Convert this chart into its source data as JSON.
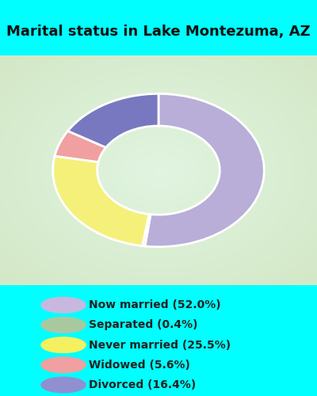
{
  "title": "Marital status in Lake Montezuma, AZ",
  "categories": [
    "Now married",
    "Separated",
    "Never married",
    "Widowed",
    "Divorced"
  ],
  "values": [
    52.0,
    0.4,
    25.5,
    5.6,
    16.4
  ],
  "colors": [
    "#b8aed8",
    "#b8cca8",
    "#f5f07a",
    "#f0a0a0",
    "#7878c0"
  ],
  "legend_labels": [
    "Now married (52.0%)",
    "Separated (0.4%)",
    "Never married (25.5%)",
    "Widowed (5.6%)",
    "Divorced (16.4%)"
  ],
  "legend_colors": [
    "#c8b8e0",
    "#aac8a0",
    "#f5f060",
    "#f0a0a0",
    "#9090d0"
  ],
  "bg_cyan": "#00ffff",
  "bg_chart_color": "#c8e8c0",
  "title_fontsize": 13,
  "title_color": "#111111"
}
